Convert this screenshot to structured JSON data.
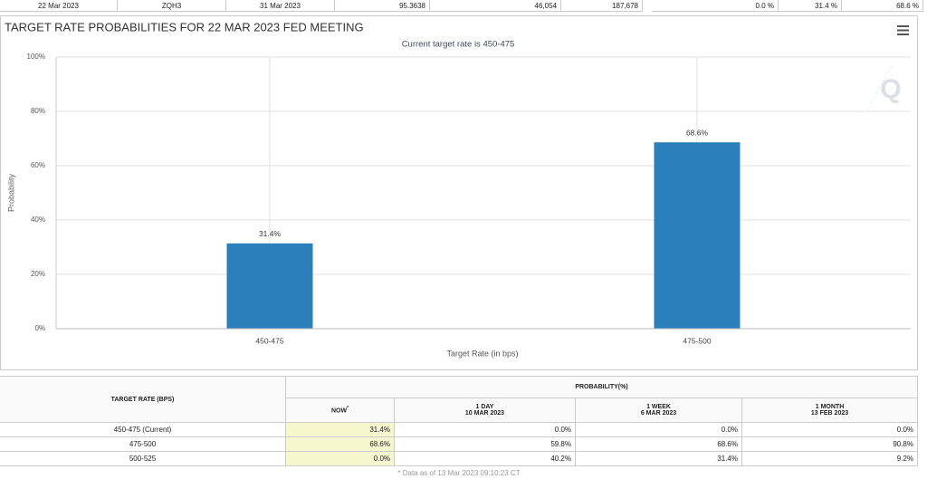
{
  "top_row": [
    "22 Mar 2023",
    "ZQH3",
    "31 Mar 2023",
    "95.3638",
    "46,054",
    "187,678",
    "0.0 %",
    "31.4 %",
    "68.6 %"
  ],
  "chart_data": {
    "type": "bar",
    "title": "TARGET RATE PROBABILITIES FOR 22 MAR 2023 FED MEETING",
    "subtitle": "Current target rate is 450-475",
    "x_label": "Target Rate (in bps)",
    "y_label": "Probability",
    "categories": [
      "450-475",
      "475-500"
    ],
    "values": [
      31.4,
      68.6
    ],
    "value_labels": [
      "31.4%",
      "68.6%"
    ],
    "color": "#2b7fba",
    "ylim": [
      0,
      100
    ],
    "yticks": [
      {
        "value": 0,
        "label": "0%"
      },
      {
        "value": 20,
        "label": "20%"
      },
      {
        "value": 40,
        "label": "40%"
      },
      {
        "value": 60,
        "label": "60%"
      },
      {
        "value": 80,
        "label": "80%"
      },
      {
        "value": 100,
        "label": "100%"
      }
    ],
    "grid": true
  },
  "table": {
    "header": "TARGET RATE (BPS)",
    "group_header": "PROBABILITY(%)",
    "columns": [
      {
        "title": "NOW",
        "note": "*"
      },
      {
        "title": "1 DAY",
        "date": "10 MAR 2023"
      },
      {
        "title": "1 WEEK",
        "date": "6 MAR 2023"
      },
      {
        "title": "1 MONTH",
        "date": "13 FEB 2023"
      }
    ],
    "rows": [
      [
        "450-475 (Current)",
        "31.4%",
        "0.0%",
        "0.0%",
        "0.0%"
      ],
      [
        "475-500",
        "68.6%",
        "59.8%",
        "68.6%",
        "90.8%"
      ],
      [
        "500-525",
        "0.0%",
        "40.2%",
        "31.4%",
        "9.2%"
      ]
    ],
    "footnote": "* Data as of 13 Mar 2023 09:10:23 CT"
  }
}
